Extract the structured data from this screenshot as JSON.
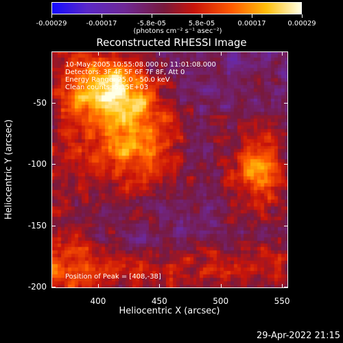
{
  "colorbar": {
    "ticks": [
      "-0.00029",
      "-0.00017",
      "-5.8e-05",
      "5.8e-05",
      "0.00017",
      "0.00029"
    ],
    "units": "(photons cm⁻² s⁻¹ asec⁻²)"
  },
  "title": "Reconstructed RHESSI Image",
  "annotations": {
    "time": "10-May-2005 10:55:08.000 to 11:01:08.000",
    "detectors": "Detectors: 3F 4F 5F 6F 7F 8F, Att 0",
    "energy": "Energy Range: 25.0 - 50.0 keV",
    "clean": "Clean      counts: 5.15E+03",
    "peak": "Position of Peak = [408,-38]"
  },
  "timestamp": "29-Apr-2022 21:15",
  "chart_data": {
    "type": "heatmap",
    "title": "Reconstructed RHESSI Image",
    "xlabel": "Heliocentric X (arcsec)",
    "ylabel": "Heliocentric Y (arcsec)",
    "xlim": [
      362,
      555
    ],
    "ylim": [
      -201,
      -8
    ],
    "x_ticks": [
      "400",
      "450",
      "500",
      "550"
    ],
    "y_ticks": [
      "-50",
      "-100",
      "-150",
      "-200"
    ],
    "x_tick_values": [
      400,
      450,
      500,
      550
    ],
    "y_tick_values": [
      -50,
      -100,
      -150,
      -200
    ],
    "colorbar_range": [
      -0.00029,
      0.00029
    ],
    "colormap": "blue-purple-red-yellow-white",
    "sources": [
      {
        "x": 408,
        "y": -38,
        "peak": 0.00029
      },
      {
        "x": 430,
        "y": -80,
        "peak": 0.00025
      },
      {
        "x": 530,
        "y": -105,
        "peak": 0.00021
      }
    ]
  }
}
